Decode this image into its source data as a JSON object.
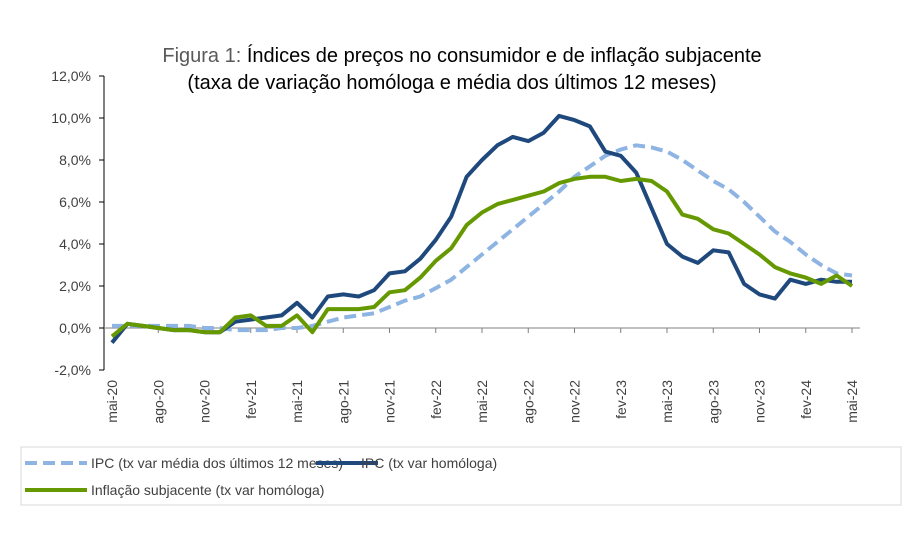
{
  "chart_data": {
    "type": "line",
    "title_prefix": "Figura 1:",
    "title": "Índices de preços no consumidor e de inflação subjacente",
    "subtitle": "(taxa de variação homóloga e média dos últimos 12 meses)",
    "xlabel": "",
    "ylabel": "",
    "ylim": [
      -2.0,
      12.0
    ],
    "yticks": [
      -2,
      0,
      2,
      4,
      6,
      8,
      10,
      12
    ],
    "ytick_labels": [
      "-2,0%",
      "0,0%",
      "2,0%",
      "4,0%",
      "6,0%",
      "8,0%",
      "10,0%",
      "12,0%"
    ],
    "x_start": "mai-20",
    "x_end": "mai-24",
    "xtick_labels": [
      "mai-20",
      "ago-20",
      "nov-20",
      "fev-21",
      "mai-21",
      "ago-21",
      "nov-21",
      "fev-22",
      "mai-22",
      "ago-22",
      "nov-22",
      "fev-23",
      "mai-23",
      "ago-23",
      "nov-23",
      "fev-24",
      "mai-24"
    ],
    "xtick_step_months": 3,
    "grid": false,
    "legend_position": "bottom",
    "series": [
      {
        "name": "IPC (tx var média dos últimos 12 meses)",
        "color": "#8DB4E2",
        "style": "dashed",
        "values": [
          0.1,
          0.1,
          0.1,
          0.1,
          0.1,
          0.1,
          0.0,
          0.0,
          -0.1,
          -0.1,
          -0.1,
          0.0,
          0.0,
          0.1,
          0.3,
          0.5,
          0.6,
          0.7,
          1.0,
          1.3,
          1.5,
          1.9,
          2.3,
          2.9,
          3.5,
          4.1,
          4.7,
          5.3,
          5.9,
          6.5,
          7.2,
          7.7,
          8.2,
          8.5,
          8.7,
          8.6,
          8.4,
          8.0,
          7.5,
          7.0,
          6.6,
          6.0,
          5.3,
          4.6,
          4.1,
          3.5,
          3.0,
          2.6,
          2.5
        ]
      },
      {
        "name": "IPC (tx var homóloga)",
        "color": "#1F497D",
        "style": "solid",
        "values": [
          -0.7,
          0.2,
          0.1,
          0.0,
          -0.1,
          -0.1,
          -0.2,
          -0.2,
          0.3,
          0.4,
          0.5,
          0.6,
          1.2,
          0.5,
          1.5,
          1.6,
          1.5,
          1.8,
          2.6,
          2.7,
          3.3,
          4.2,
          5.3,
          7.2,
          8.0,
          8.7,
          9.1,
          8.9,
          9.3,
          10.1,
          9.9,
          9.6,
          8.4,
          8.2,
          7.4,
          5.7,
          4.0,
          3.4,
          3.1,
          3.7,
          3.6,
          2.1,
          1.6,
          1.4,
          2.3,
          2.1,
          2.3,
          2.2,
          2.2
        ]
      },
      {
        "name": "Inflação subjacente (tx var homóloga)",
        "color": "#669900",
        "style": "solid",
        "values": [
          -0.4,
          0.2,
          0.1,
          0.0,
          -0.1,
          -0.1,
          -0.2,
          -0.2,
          0.5,
          0.6,
          0.1,
          0.1,
          0.6,
          -0.2,
          0.9,
          0.9,
          0.9,
          1.0,
          1.7,
          1.8,
          2.4,
          3.2,
          3.8,
          4.9,
          5.5,
          5.9,
          6.1,
          6.3,
          6.5,
          6.9,
          7.1,
          7.2,
          7.2,
          7.0,
          7.1,
          7.0,
          6.5,
          5.4,
          5.2,
          4.7,
          4.5,
          4.0,
          3.5,
          2.9,
          2.6,
          2.4,
          2.1,
          2.5,
          2.0
        ]
      }
    ]
  }
}
